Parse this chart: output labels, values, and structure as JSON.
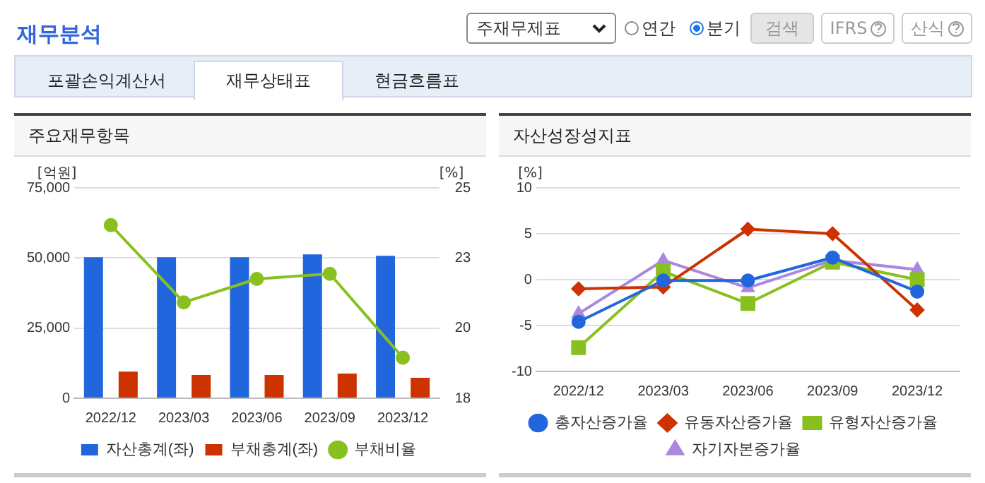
{
  "chart_data": [
    {
      "type": "other",
      "title": "재무분석",
      "annotations": [
        "주재무제표",
        "연간",
        "분기",
        "검색",
        "IFRS",
        "산식",
        "포괄손익계산서",
        "재무상태표",
        "현금흐름표"
      ]
    },
    {
      "type": "bar",
      "title": "주요재무항목",
      "categories": [
        "2022/12",
        "2023/03",
        "2023/06",
        "2023/09",
        "2023/12"
      ],
      "ylabel": "[억원]",
      "y2label": "[%]",
      "ylim": [
        0,
        75000
      ],
      "yticks": [
        0,
        {
          "value": 25000,
          "label": "25,000"
        },
        {
          "value": 50000,
          "label": "50,000"
        },
        {
          "value": 75000,
          "label": "75,000"
        }
      ],
      "y2lim": [
        18,
        25
      ],
      "y2ticks": [
        18,
        {
          "value": 20.333,
          "label": "20"
        },
        {
          "value": 22.667,
          "label": "23"
        },
        25
      ],
      "grid": "y",
      "legend": "bottom",
      "series": [
        {
          "name": "자산총계(좌)",
          "color": "#2266dd",
          "values": [
            50300,
            50300,
            50300,
            51300,
            50800
          ]
        },
        {
          "name": "부채총계(좌)",
          "color": "#cc3300",
          "values": [
            9500,
            8300,
            8300,
            8800,
            7300
          ]
        },
        {
          "name": "부채비율",
          "type": "line",
          "axis": "y2",
          "marker": "circle",
          "color": "#88c020",
          "values": [
            23.76,
            21.19,
            21.97,
            22.14,
            19.35
          ]
        }
      ]
    },
    {
      "type": "line",
      "title": "자산성장성지표",
      "categories": [
        "2022/12",
        "2023/03",
        "2023/06",
        "2023/09",
        "2023/12"
      ],
      "ylabel": "[%]",
      "ylim": [
        -10,
        10
      ],
      "yticks": [
        -10,
        -5,
        0,
        5,
        10
      ],
      "grid": "y",
      "legend": "bottom",
      "series": [
        {
          "name": "총자산증가율",
          "color": "#2266dd",
          "marker": "circle",
          "values": [
            -4.6,
            -0.1,
            -0.1,
            2.4,
            -1.3
          ]
        },
        {
          "name": "유동자산증가율",
          "color": "#cc3300",
          "marker": "diamond",
          "values": [
            -1.0,
            -0.8,
            5.5,
            5.0,
            -3.3
          ]
        },
        {
          "name": "유형자산증가율",
          "color": "#88c020",
          "marker": "square",
          "values": [
            -7.4,
            0.9,
            -2.6,
            1.9,
            0.0
          ]
        },
        {
          "name": "자기자본증가율",
          "color": "#aa88dd",
          "marker": "triangle",
          "values": [
            -3.7,
            2.1,
            -0.9,
            2.1,
            1.1
          ]
        }
      ]
    }
  ]
}
